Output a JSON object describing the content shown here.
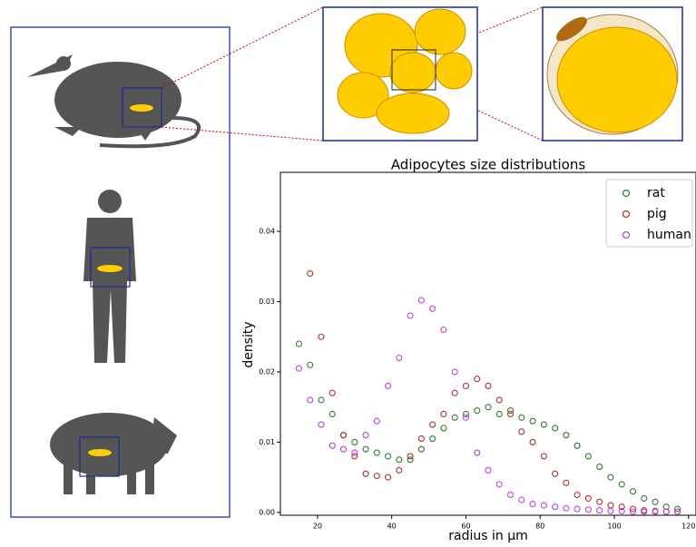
{
  "chart_data": {
    "type": "scatter",
    "title": "Adipocytes size distributions",
    "x_label": "radius in μm",
    "y_label": "density",
    "x": [
      15,
      18,
      21,
      24,
      27,
      30,
      33,
      36,
      39,
      42,
      45,
      48,
      51,
      54,
      57,
      60,
      63,
      66,
      69,
      72,
      75,
      78,
      81,
      84,
      87,
      90,
      93,
      96,
      99,
      102,
      105,
      108,
      111,
      114,
      117
    ],
    "series": [
      {
        "name": "rat",
        "color": "#2e7d32",
        "values": [
          0.024,
          0.021,
          0.016,
          0.014,
          0.011,
          0.01,
          0.009,
          0.0085,
          0.008,
          0.0075,
          0.0075,
          0.009,
          0.0105,
          0.012,
          0.0135,
          0.014,
          0.0145,
          0.015,
          0.014,
          0.0145,
          0.0135,
          0.013,
          0.0125,
          0.012,
          0.011,
          0.0095,
          0.008,
          0.0065,
          0.005,
          0.004,
          0.003,
          0.002,
          0.0015,
          0.0008,
          0.0005
        ]
      },
      {
        "name": "pig",
        "color": "#b03030",
        "values": [
          null,
          0.034,
          0.025,
          0.017,
          0.011,
          0.008,
          0.0055,
          0.0052,
          0.005,
          0.006,
          0.008,
          0.0105,
          0.0125,
          0.014,
          0.017,
          0.018,
          0.019,
          0.018,
          0.016,
          0.014,
          0.0115,
          0.01,
          0.008,
          0.0055,
          0.0042,
          0.0025,
          0.002,
          0.0015,
          0.001,
          0.0008,
          0.0005,
          0.0003,
          0.0002,
          0.0001,
          0.0001
        ]
      },
      {
        "name": "human",
        "color": "#c040e0",
        "values": [
          0.0205,
          0.016,
          0.0125,
          0.0095,
          0.009,
          0.0085,
          0.011,
          0.013,
          0.018,
          0.022,
          0.028,
          0.0302,
          0.029,
          0.026,
          0.02,
          0.0135,
          0.0085,
          0.006,
          0.004,
          0.0025,
          0.0018,
          0.0012,
          0.001,
          0.0008,
          0.0006,
          0.0005,
          0.0004,
          0.0003,
          0.0002,
          0.0002,
          0.0001,
          0.0001,
          0.0001,
          0.0001,
          0.0001
        ]
      }
    ],
    "xlim": [
      10,
      122
    ],
    "ylim": [
      -0.0004,
      0.0484
    ],
    "xticks": [
      20,
      40,
      60,
      80,
      100,
      120
    ],
    "yticks": [
      {
        "value": 0,
        "label": "0.00"
      },
      {
        "value": 0.01,
        "label": "0.01"
      },
      {
        "value": 0.02,
        "label": "0.02"
      },
      {
        "value": 0.03,
        "label": "0.03"
      },
      {
        "value": 0.04,
        "label": "0.04"
      }
    ],
    "legend": "upper right"
  }
}
